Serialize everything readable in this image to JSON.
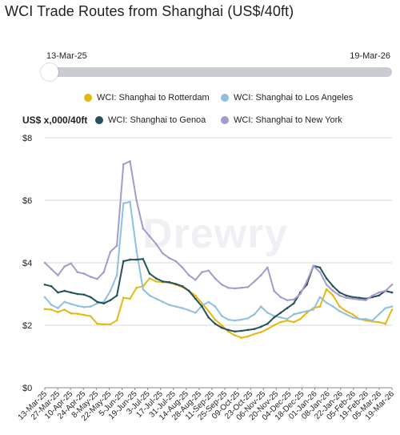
{
  "title": "WCI Trade Routes from Shanghai (US$/40ft)",
  "range": {
    "start": "13-Mar-25",
    "end": "19-Mar-26"
  },
  "watermark": "Drewry",
  "chart_data": {
    "type": "line",
    "ylabel": "US$ x,000/40ft",
    "ylim": [
      0,
      8
    ],
    "yticks": [
      "$0",
      "$2",
      "$4",
      "$6",
      "$8"
    ],
    "grid": true,
    "legend_position": "top",
    "x": [
      "13-Mar-25",
      "20-Mar-25",
      "27-Mar-25",
      "03-Apr-25",
      "10-Apr-25",
      "17-Apr-25",
      "24-Apr-25",
      "01-May-25",
      "08-May-25",
      "15-May-25",
      "22-May-25",
      "29-May-25",
      "05-Jun-25",
      "12-Jun-25",
      "19-Jun-25",
      "26-Jun-25",
      "03-Jul-25",
      "10-Jul-25",
      "17-Jul-25",
      "24-Jul-25",
      "31-Jul-25",
      "07-Aug-25",
      "14-Aug-25",
      "21-Aug-25",
      "28-Aug-25",
      "04-Sep-25",
      "11-Sep-25",
      "18-Sep-25",
      "25-Sep-25",
      "02-Oct-25",
      "09-Oct-25",
      "16-Oct-25",
      "23-Oct-25",
      "30-Oct-25",
      "06-Nov-25",
      "13-Nov-25",
      "20-Nov-25",
      "27-Nov-25",
      "04-Dec-25",
      "11-Dec-25",
      "18-Dec-25",
      "25-Dec-25",
      "01-Jan-26",
      "08-Jan-26",
      "15-Jan-26",
      "22-Jan-26",
      "29-Jan-26",
      "05-Feb-26",
      "12-Feb-26",
      "19-Feb-26",
      "26-Feb-26",
      "05-Mar-26",
      "12-Mar-26",
      "19-Mar-26"
    ],
    "xticks": [
      "13-Mar-25",
      "27-Mar-25",
      "10-Apr-25",
      "24-Apr-25",
      "8-May-25",
      "22-May-25",
      "5-Jun-25",
      "19-Jun-25",
      "3-Jul-25",
      "17-Jul-25",
      "31-Jul-25",
      "14-Aug-25",
      "28-Aug-25",
      "11-Sep-25",
      "25-Sep-25",
      "09-Oct-25",
      "23-Oct-25",
      "06-Nov-25",
      "20-Nov-25",
      "04-Dec-25",
      "18-Dec-25",
      "01-Jan-26",
      "08-Jan-26",
      "22-Jan-26",
      "05-Feb-26",
      "19-Feb-26",
      "05-Mar-26",
      "19-Mar-26"
    ],
    "series": [
      {
        "name": "WCI: Shanghai to Rotterdam",
        "color": "#e6b80e",
        "values": [
          2.52,
          2.5,
          2.42,
          2.5,
          2.38,
          2.37,
          2.33,
          2.29,
          2.05,
          2.03,
          2.03,
          2.16,
          2.88,
          2.85,
          3.2,
          3.25,
          3.5,
          3.4,
          3.38,
          3.36,
          3.3,
          3.22,
          3.1,
          2.95,
          2.7,
          2.45,
          2.18,
          2.0,
          1.8,
          1.68,
          1.6,
          1.64,
          1.72,
          1.78,
          1.88,
          2.0,
          2.1,
          2.15,
          2.1,
          2.2,
          2.4,
          2.55,
          2.6,
          3.15,
          2.95,
          2.6,
          2.45,
          2.35,
          2.2,
          2.15,
          2.12,
          2.1,
          2.05,
          2.5
        ]
      },
      {
        "name": "WCI: Shanghai to Los Angeles",
        "color": "#8ec0e0",
        "values": [
          2.9,
          2.65,
          2.55,
          2.75,
          2.68,
          2.62,
          2.58,
          2.6,
          2.7,
          2.75,
          3.1,
          3.6,
          5.9,
          5.95,
          4.4,
          3.15,
          2.95,
          2.85,
          2.75,
          2.65,
          2.6,
          2.55,
          2.48,
          2.4,
          2.62,
          2.75,
          2.6,
          2.3,
          2.18,
          2.15,
          2.18,
          2.22,
          2.35,
          2.6,
          2.4,
          2.3,
          2.25,
          2.2,
          2.35,
          2.4,
          2.45,
          2.5,
          2.9,
          2.72,
          2.6,
          2.45,
          2.35,
          2.25,
          2.2,
          2.2,
          2.15,
          2.35,
          2.55,
          2.6
        ]
      },
      {
        "name": "WCI: Shanghai to Genoa",
        "color": "#24525a",
        "values": [
          3.3,
          3.25,
          3.05,
          3.1,
          3.05,
          3.0,
          2.98,
          2.9,
          2.75,
          2.7,
          2.8,
          2.95,
          4.05,
          4.1,
          4.1,
          4.12,
          3.65,
          3.5,
          3.4,
          3.38,
          3.32,
          3.25,
          3.1,
          2.85,
          2.6,
          2.25,
          2.05,
          1.92,
          1.85,
          1.8,
          1.82,
          1.85,
          1.88,
          1.95,
          2.05,
          2.25,
          2.4,
          2.55,
          2.7,
          3.05,
          3.3,
          3.9,
          3.85,
          3.5,
          3.25,
          3.05,
          2.95,
          2.9,
          2.88,
          2.85,
          2.9,
          2.95,
          3.1,
          3.05
        ]
      },
      {
        "name": "WCI: Shanghai to New York",
        "color": "#a59acd",
        "values": [
          4.0,
          3.8,
          3.6,
          3.88,
          3.98,
          3.7,
          3.65,
          3.55,
          3.48,
          3.7,
          4.35,
          4.55,
          7.15,
          7.25,
          6.0,
          5.1,
          4.85,
          4.6,
          4.3,
          4.15,
          4.05,
          3.85,
          3.6,
          3.45,
          3.7,
          3.75,
          3.5,
          3.3,
          3.2,
          3.18,
          3.2,
          3.22,
          3.4,
          3.6,
          3.85,
          3.1,
          2.9,
          2.8,
          2.82,
          3.0,
          3.4,
          3.9,
          3.7,
          3.3,
          3.1,
          2.95,
          2.88,
          2.85,
          2.82,
          2.8,
          2.95,
          3.05,
          3.1,
          3.3
        ]
      }
    ]
  }
}
